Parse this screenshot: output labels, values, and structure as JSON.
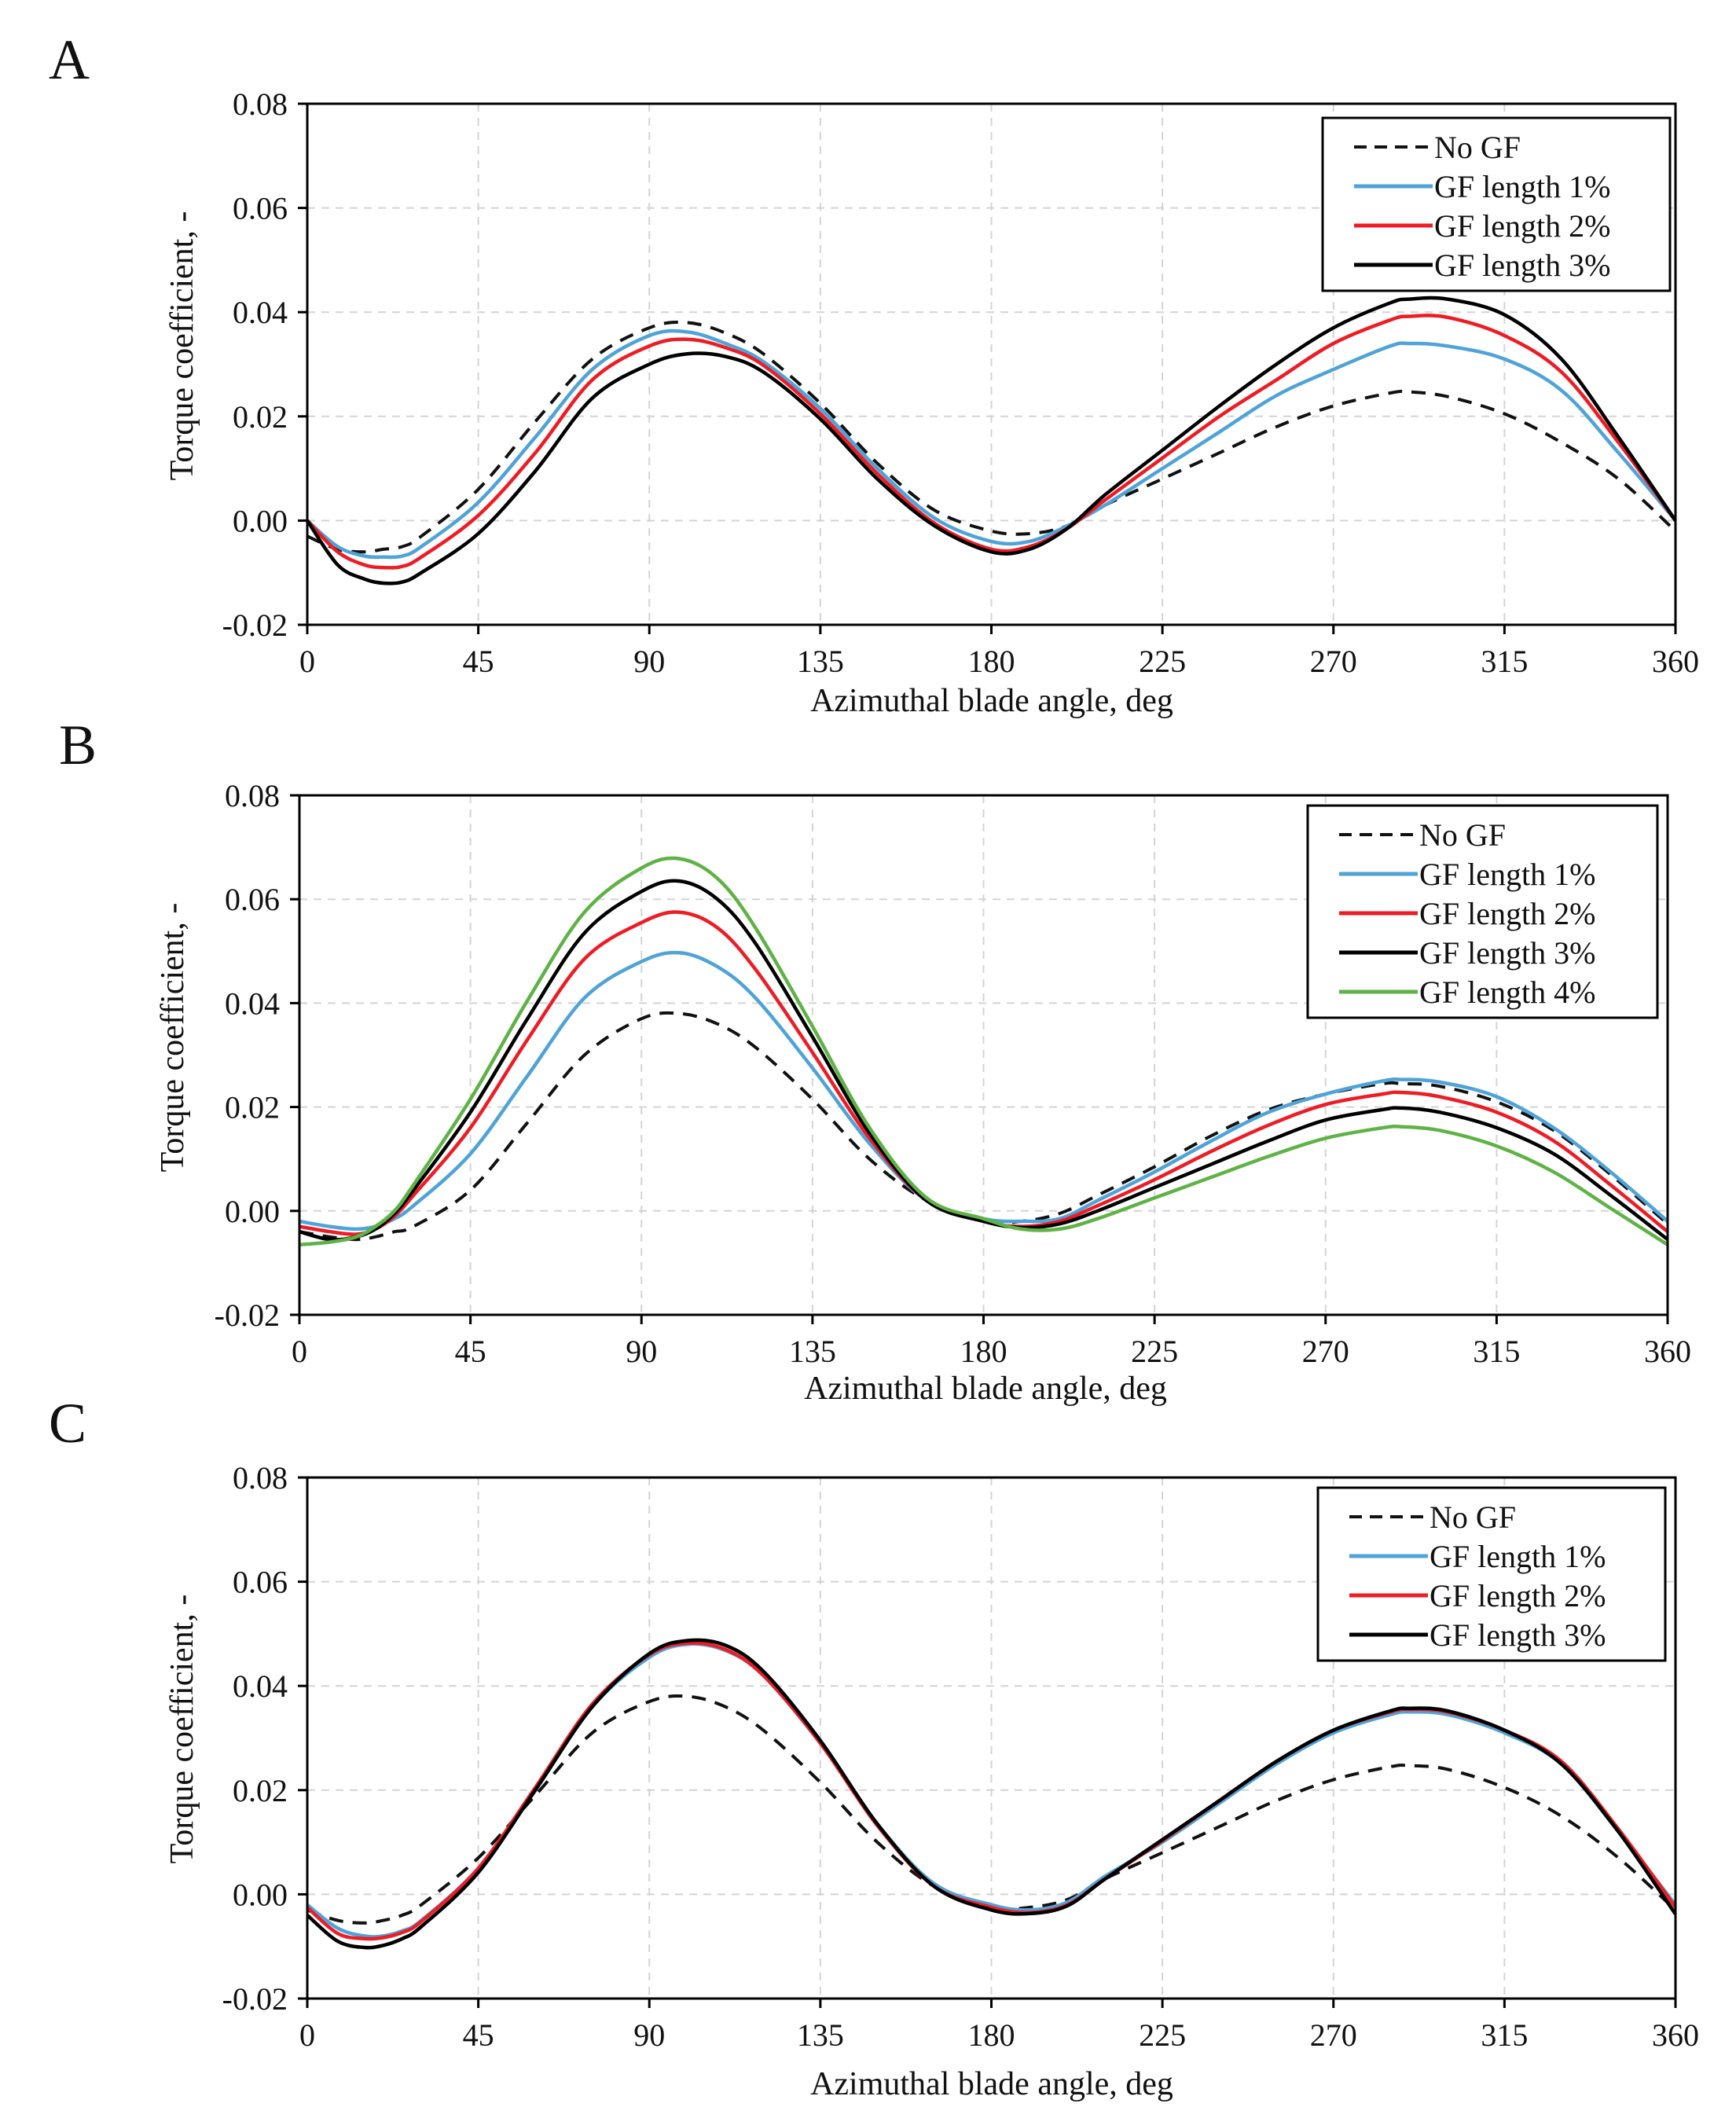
{
  "colors": {
    "No GF": "#111111",
    "GF length 1%": "#4fa3d9",
    "GF length 2%": "#ee1c24",
    "GF length 3%": "#000000",
    "GF length 4%": "#5fb346",
    "grid": "#d4d4d4",
    "axis": "#000000"
  },
  "chart_data": [
    {
      "panel_label": "A",
      "type": "line",
      "xlabel": "Azimuthal blade angle, deg",
      "ylabel": "Torque coefficient, -",
      "xlim": [
        0,
        360
      ],
      "ylim": [
        -0.02,
        0.08
      ],
      "xticks": [
        0,
        45,
        90,
        135,
        180,
        225,
        270,
        315,
        360
      ],
      "yticks": [
        -0.02,
        0.0,
        0.02,
        0.04,
        0.06,
        0.08
      ],
      "ytick_labels": [
        "-0.02",
        "0.00",
        "0.02",
        "0.04",
        "0.06",
        "0.08"
      ],
      "grid": true,
      "legend_position": "top-right",
      "x": [
        0,
        8,
        15,
        20,
        25,
        30,
        45,
        60,
        75,
        90,
        100,
        110,
        120,
        135,
        150,
        165,
        180,
        190,
        200,
        210,
        225,
        240,
        255,
        270,
        285,
        290,
        300,
        315,
        330,
        345,
        360
      ],
      "series": [
        {
          "name": "No GF",
          "dash": true,
          "values": [
            -0.003,
            -0.0055,
            -0.006,
            -0.0055,
            -0.005,
            -0.003,
            0.006,
            0.019,
            0.031,
            0.037,
            0.038,
            0.036,
            0.032,
            0.0225,
            0.011,
            0.002,
            -0.002,
            -0.0025,
            -0.001,
            0.003,
            0.008,
            0.013,
            0.018,
            0.022,
            0.0245,
            0.0247,
            0.0238,
            0.0205,
            0.015,
            0.008,
            -0.002
          ]
        },
        {
          "name": "GF length 1%",
          "dash": false,
          "values": [
            0.0,
            -0.005,
            -0.0068,
            -0.007,
            -0.0068,
            -0.005,
            0.0035,
            0.016,
            0.029,
            0.0355,
            0.0362,
            0.034,
            0.0305,
            0.0215,
            0.01,
            0.0005,
            -0.004,
            -0.004,
            -0.001,
            0.003,
            0.01,
            0.017,
            0.024,
            0.029,
            0.0335,
            0.034,
            0.0335,
            0.031,
            0.025,
            0.013,
            0.0
          ]
        },
        {
          "name": "GF length 2%",
          "dash": false,
          "values": [
            0.0,
            -0.006,
            -0.0085,
            -0.009,
            -0.0088,
            -0.007,
            0.001,
            0.013,
            0.027,
            0.0335,
            0.0348,
            0.0332,
            0.0298,
            0.0205,
            0.009,
            -0.0005,
            -0.0055,
            -0.005,
            -0.0015,
            0.004,
            0.012,
            0.02,
            0.027,
            0.034,
            0.0385,
            0.0392,
            0.039,
            0.0355,
            0.0285,
            0.015,
            0.0
          ]
        },
        {
          "name": "GF length 3%",
          "dash": false,
          "values": [
            0.0,
            -0.0085,
            -0.0112,
            -0.012,
            -0.0118,
            -0.01,
            -0.0025,
            0.0095,
            0.0235,
            0.03,
            0.032,
            0.0315,
            0.0285,
            0.0195,
            0.008,
            -0.001,
            -0.006,
            -0.0055,
            -0.0015,
            0.005,
            0.0135,
            0.022,
            0.03,
            0.037,
            0.0418,
            0.0425,
            0.0425,
            0.0395,
            0.031,
            0.016,
            0.0
          ]
        }
      ],
      "legend": [
        "No GF",
        "GF length 1%",
        "GF length 2%",
        "GF length 3%"
      ]
    },
    {
      "panel_label": "B",
      "type": "line",
      "xlabel": "Azimuthal blade angle, deg",
      "ylabel": "Torque coefficient, -",
      "xlim": [
        0,
        360
      ],
      "ylim": [
        -0.02,
        0.08
      ],
      "xticks": [
        0,
        45,
        90,
        135,
        180,
        225,
        270,
        315,
        360
      ],
      "yticks": [
        -0.02,
        0.0,
        0.02,
        0.04,
        0.06,
        0.08
      ],
      "ytick_labels": [
        "-0.02",
        "0.00",
        "0.02",
        "0.04",
        "0.06",
        "0.08"
      ],
      "grid": true,
      "legend_position": "top-right",
      "x": [
        0,
        8,
        15,
        20,
        25,
        30,
        45,
        60,
        75,
        90,
        100,
        110,
        120,
        135,
        150,
        165,
        180,
        190,
        200,
        210,
        225,
        240,
        255,
        270,
        285,
        290,
        300,
        315,
        330,
        345,
        360
      ],
      "series": [
        {
          "name": "No GF",
          "dash": true,
          "values": [
            -0.004,
            -0.005,
            -0.0055,
            -0.005,
            -0.004,
            -0.003,
            0.004,
            0.017,
            0.03,
            0.037,
            0.038,
            0.036,
            0.0315,
            0.0215,
            0.01,
            0.002,
            -0.002,
            -0.002,
            -0.0005,
            0.003,
            0.0085,
            0.0145,
            0.0195,
            0.0225,
            0.0245,
            0.0245,
            0.024,
            0.021,
            0.0155,
            0.007,
            -0.0025
          ]
        },
        {
          "name": "GF length 1%",
          "dash": false,
          "values": [
            -0.002,
            -0.003,
            -0.0035,
            -0.003,
            -0.0015,
            0.001,
            0.011,
            0.026,
            0.041,
            0.048,
            0.0497,
            0.047,
            0.041,
            0.0275,
            0.013,
            0.002,
            -0.0015,
            -0.002,
            -0.0015,
            0.002,
            0.0075,
            0.0135,
            0.019,
            0.0225,
            0.025,
            0.0253,
            0.0248,
            0.022,
            0.016,
            0.0075,
            -0.002
          ]
        },
        {
          "name": "GF length 2%",
          "dash": false,
          "values": [
            -0.003,
            -0.004,
            -0.0045,
            -0.0035,
            -0.001,
            0.003,
            0.016,
            0.033,
            0.0485,
            0.0555,
            0.0575,
            0.0545,
            0.0465,
            0.0305,
            0.014,
            0.002,
            -0.002,
            -0.003,
            -0.002,
            0.001,
            0.006,
            0.0115,
            0.0165,
            0.0205,
            0.0225,
            0.0228,
            0.022,
            0.019,
            0.0135,
            0.005,
            -0.004
          ]
        },
        {
          "name": "GF length 3%",
          "dash": false,
          "values": [
            -0.004,
            -0.0055,
            -0.005,
            -0.0035,
            -0.0005,
            0.004,
            0.019,
            0.037,
            0.0535,
            0.0615,
            0.0635,
            0.06,
            0.0515,
            0.0335,
            0.015,
            0.002,
            -0.002,
            -0.0032,
            -0.0025,
            0.0,
            0.0045,
            0.009,
            0.0135,
            0.0175,
            0.0195,
            0.0198,
            0.019,
            0.016,
            0.011,
            0.003,
            -0.0055
          ]
        },
        {
          "name": "GF length 4%",
          "dash": false,
          "values": [
            -0.0065,
            -0.006,
            -0.005,
            -0.003,
            0.0,
            0.005,
            0.0215,
            0.0405,
            0.0575,
            0.066,
            0.0678,
            0.064,
            0.0545,
            0.0355,
            0.016,
            0.0025,
            -0.0015,
            -0.0035,
            -0.0035,
            -0.0015,
            0.0025,
            0.0065,
            0.0105,
            0.014,
            0.016,
            0.0162,
            0.0155,
            0.0125,
            0.0075,
            0.0005,
            -0.0065
          ]
        }
      ],
      "legend": [
        "No GF",
        "GF length 1%",
        "GF length 2%",
        "GF length 3%",
        "GF length 4%"
      ]
    },
    {
      "panel_label": "C",
      "type": "line",
      "xlabel": "Azimuthal blade angle, deg",
      "ylabel": "Torque coefficient, -",
      "xlim": [
        0,
        360
      ],
      "ylim": [
        -0.02,
        0.08
      ],
      "xticks": [
        0,
        45,
        90,
        135,
        180,
        225,
        270,
        315,
        360
      ],
      "yticks": [
        -0.02,
        0.0,
        0.02,
        0.04,
        0.06,
        0.08
      ],
      "ytick_labels": [
        "-0.02",
        "0.00",
        "0.02",
        "0.04",
        "0.06",
        "0.08"
      ],
      "grid": true,
      "legend_position": "top-right",
      "x": [
        0,
        8,
        15,
        20,
        25,
        30,
        45,
        60,
        75,
        90,
        100,
        110,
        120,
        135,
        150,
        165,
        180,
        190,
        200,
        210,
        225,
        240,
        255,
        270,
        285,
        290,
        300,
        315,
        330,
        345,
        360
      ],
      "series": [
        {
          "name": "No GF",
          "dash": true,
          "values": [
            -0.003,
            -0.005,
            -0.0055,
            -0.005,
            -0.004,
            -0.002,
            0.007,
            0.019,
            0.031,
            0.037,
            0.038,
            0.036,
            0.0315,
            0.0215,
            0.01,
            0.0015,
            -0.0025,
            -0.0025,
            -0.001,
            0.003,
            0.008,
            0.013,
            0.018,
            0.022,
            0.0245,
            0.0247,
            0.024,
            0.0205,
            0.015,
            0.007,
            -0.003
          ]
        },
        {
          "name": "GF length 1%",
          "dash": false,
          "values": [
            -0.002,
            -0.0065,
            -0.008,
            -0.008,
            -0.007,
            -0.005,
            0.005,
            0.02,
            0.036,
            0.0455,
            0.048,
            0.0468,
            0.042,
            0.029,
            0.0135,
            0.002,
            -0.002,
            -0.003,
            -0.0015,
            0.0035,
            0.01,
            0.0175,
            0.025,
            0.031,
            0.0345,
            0.035,
            0.0345,
            0.031,
            0.025,
            0.012,
            -0.002
          ]
        },
        {
          "name": "GF length 2%",
          "dash": false,
          "values": [
            -0.0025,
            -0.0075,
            -0.0085,
            -0.0083,
            -0.0073,
            -0.0052,
            0.005,
            0.0205,
            0.0365,
            0.046,
            0.0482,
            0.047,
            0.042,
            0.029,
            0.0132,
            0.0015,
            -0.0025,
            -0.0035,
            -0.002,
            0.003,
            0.0103,
            0.018,
            0.0255,
            0.0315,
            0.035,
            0.0355,
            0.035,
            0.0315,
            0.0255,
            0.0125,
            -0.0025
          ]
        },
        {
          "name": "GF length 3%",
          "dash": false,
          "values": [
            -0.004,
            -0.009,
            -0.0102,
            -0.0098,
            -0.0085,
            -0.0062,
            0.0042,
            0.02,
            0.036,
            0.0462,
            0.0487,
            0.0478,
            0.0428,
            0.0295,
            0.0135,
            0.0015,
            -0.003,
            -0.0037,
            -0.0022,
            0.003,
            0.0105,
            0.018,
            0.0255,
            0.0315,
            0.0352,
            0.0357,
            0.0352,
            0.0315,
            0.025,
            0.012,
            -0.0038
          ]
        }
      ],
      "legend": [
        "No GF",
        "GF length 1%",
        "GF length 2%",
        "GF length 3%"
      ]
    }
  ]
}
